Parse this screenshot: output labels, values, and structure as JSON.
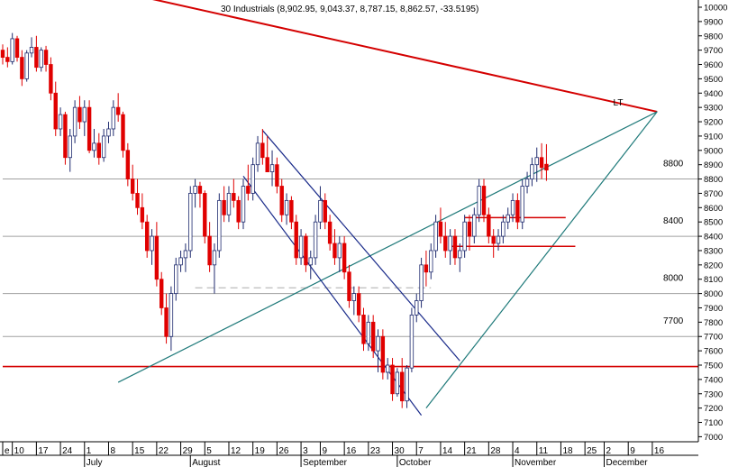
{
  "chart_data": {
    "type": "candlestick",
    "title": "30 Industrials (8,902.95, 9,043.37, 8,787.15, 8,862.57, -33.5195)",
    "ylim": [
      6950,
      10050
    ],
    "y_ticks": [
      7000,
      7100,
      7200,
      7300,
      7400,
      7500,
      7600,
      7700,
      7800,
      7900,
      8000,
      8100,
      8200,
      8300,
      8400,
      8500,
      8600,
      8700,
      8800,
      8900,
      9000,
      9100,
      9200,
      9300,
      9400,
      9500,
      9600,
      9700,
      9800,
      9900,
      10000
    ],
    "x_day_ticks": [
      {
        "label": "e",
        "day": 0
      },
      {
        "label": "10",
        "day": 2
      },
      {
        "label": "17",
        "day": 7
      },
      {
        "label": "24",
        "day": 12
      },
      {
        "label": "1",
        "day": 17
      },
      {
        "label": "8",
        "day": 22
      },
      {
        "label": "15",
        "day": 27
      },
      {
        "label": "22",
        "day": 32
      },
      {
        "label": "29",
        "day": 37
      },
      {
        "label": "5",
        "day": 42
      },
      {
        "label": "12",
        "day": 47
      },
      {
        "label": "19",
        "day": 52
      },
      {
        "label": "26",
        "day": 57
      },
      {
        "label": "3",
        "day": 62
      },
      {
        "label": "9",
        "day": 66
      },
      {
        "label": "16",
        "day": 71
      },
      {
        "label": "23",
        "day": 76
      },
      {
        "label": "30",
        "day": 81
      },
      {
        "label": "7",
        "day": 86
      },
      {
        "label": "14",
        "day": 91
      },
      {
        "label": "21",
        "day": 96
      },
      {
        "label": "28",
        "day": 101
      },
      {
        "label": "4",
        "day": 106
      },
      {
        "label": "11",
        "day": 111
      },
      {
        "label": "18",
        "day": 116
      },
      {
        "label": "25",
        "day": 121
      },
      {
        "label": "2",
        "day": 125
      },
      {
        "label": "9",
        "day": 130
      },
      {
        "label": "16",
        "day": 135
      }
    ],
    "x_months": [
      {
        "label": "July",
        "day": 17
      },
      {
        "label": "August",
        "day": 39
      },
      {
        "label": "September",
        "day": 62
      },
      {
        "label": "October",
        "day": 82
      },
      {
        "label": "November",
        "day": 106
      },
      {
        "label": "December",
        "day": 125
      }
    ],
    "level_labels": [
      {
        "label": "8800",
        "value": 8800
      },
      {
        "label": "8400",
        "value": 8400
      },
      {
        "label": "8000",
        "value": 8000
      },
      {
        "label": "7700",
        "value": 7700
      }
    ],
    "horizontal_lines": [
      {
        "value": 8800,
        "color": "#a0a0a0"
      },
      {
        "value": 8400,
        "color": "#a0a0a0"
      },
      {
        "value": 8000,
        "color": "#a0a0a0"
      },
      {
        "value": 7700,
        "color": "#a0a0a0"
      },
      {
        "value": 7490,
        "color": "#d40000"
      }
    ],
    "dashed_line": {
      "day_from": 40,
      "day_to": 89,
      "value": 8040,
      "color": "#bcbcbc"
    },
    "trend_lines": [
      {
        "from": [
          28,
          10080
        ],
        "to": [
          136,
          9270
        ],
        "color": "#d40000",
        "width": 2
      },
      {
        "from": [
          24,
          7380
        ],
        "to": [
          136,
          9270
        ],
        "color": "#1f7a7a",
        "width": 1.2
      },
      {
        "from": [
          88,
          7200
        ],
        "to": [
          136,
          9270
        ],
        "color": "#1f7a7a",
        "width": 1.2
      },
      {
        "from": [
          54,
          9140
        ],
        "to": [
          95,
          7530
        ],
        "color": "#1a2b8a",
        "width": 1.2
      },
      {
        "from": [
          50,
          8820
        ],
        "to": [
          87,
          7150
        ],
        "color": "#1a2b8a",
        "width": 1.2
      },
      {
        "from": [
          93,
          8330
        ],
        "to": [
          119,
          8330
        ],
        "color": "#d40000",
        "width": 1.5
      },
      {
        "from": [
          96,
          8530
        ],
        "to": [
          117,
          8530
        ],
        "color": "#d40000",
        "width": 1.5
      }
    ],
    "annotation": {
      "label": "LT",
      "day": 128,
      "value": 9340
    },
    "candles": [
      [
        0,
        9700,
        9740,
        9600,
        9650
      ],
      [
        1,
        9650,
        9720,
        9580,
        9620
      ],
      [
        2,
        9620,
        9820,
        9600,
        9780
      ],
      [
        3,
        9780,
        9800,
        9620,
        9650
      ],
      [
        4,
        9650,
        9700,
        9450,
        9500
      ],
      [
        5,
        9500,
        9700,
        9480,
        9680
      ],
      [
        6,
        9680,
        9790,
        9650,
        9720
      ],
      [
        7,
        9720,
        9800,
        9550,
        9580
      ],
      [
        8,
        9580,
        9720,
        9550,
        9700
      ],
      [
        9,
        9700,
        9730,
        9550,
        9600
      ],
      [
        10,
        9600,
        9650,
        9350,
        9400
      ],
      [
        11,
        9400,
        9480,
        9100,
        9150
      ],
      [
        12,
        9150,
        9300,
        9100,
        9250
      ],
      [
        13,
        9250,
        9270,
        8900,
        8950
      ],
      [
        14,
        8950,
        9150,
        8850,
        9100
      ],
      [
        15,
        9100,
        9350,
        9050,
        9300
      ],
      [
        16,
        9300,
        9380,
        9150,
        9200
      ],
      [
        17,
        9200,
        9350,
        9100,
        9300
      ],
      [
        18,
        9300,
        9350,
        8980,
        9000
      ],
      [
        19,
        9000,
        9150,
        8950,
        9050
      ],
      [
        20,
        9050,
        9120,
        8900,
        8950
      ],
      [
        21,
        8950,
        9150,
        8920,
        9100
      ],
      [
        22,
        9100,
        9200,
        9050,
        9150
      ],
      [
        23,
        9150,
        9350,
        9100,
        9300
      ],
      [
        24,
        9300,
        9400,
        9200,
        9250
      ],
      [
        25,
        9250,
        9270,
        8950,
        9000
      ],
      [
        26,
        9000,
        9050,
        8750,
        8800
      ],
      [
        27,
        8800,
        8900,
        8650,
        8700
      ],
      [
        28,
        8700,
        8800,
        8550,
        8600
      ],
      [
        29,
        8600,
        8700,
        8450,
        8500
      ],
      [
        30,
        8500,
        8550,
        8250,
        8300
      ],
      [
        31,
        8300,
        8450,
        8200,
        8400
      ],
      [
        32,
        8400,
        8500,
        8050,
        8100
      ],
      [
        33,
        8100,
        8150,
        7850,
        7900
      ],
      [
        34,
        7900,
        8000,
        7650,
        7700
      ],
      [
        35,
        7700,
        8050,
        7600,
        8000
      ],
      [
        36,
        8000,
        8250,
        7950,
        8200
      ],
      [
        37,
        8200,
        8300,
        8150,
        8250
      ],
      [
        38,
        8250,
        8350,
        8150,
        8300
      ],
      [
        39,
        8300,
        8750,
        8250,
        8700
      ],
      [
        40,
        8700,
        8800,
        8600,
        8750
      ],
      [
        41,
        8750,
        8780,
        8600,
        8700
      ],
      [
        42,
        8700,
        8720,
        8350,
        8400
      ],
      [
        43,
        8400,
        8500,
        8150,
        8200
      ],
      [
        44,
        8200,
        8350,
        8000,
        8300
      ],
      [
        45,
        8300,
        8700,
        8250,
        8650
      ],
      [
        46,
        8650,
        8750,
        8500,
        8550
      ],
      [
        47,
        8550,
        8750,
        8500,
        8700
      ],
      [
        48,
        8700,
        8800,
        8600,
        8650
      ],
      [
        49,
        8650,
        8680,
        8450,
        8500
      ],
      [
        50,
        8500,
        8800,
        8450,
        8750
      ],
      [
        51,
        8750,
        8900,
        8650,
        8700
      ],
      [
        52,
        8700,
        8950,
        8650,
        8900
      ],
      [
        53,
        8900,
        9100,
        8850,
        9050
      ],
      [
        54,
        9050,
        9150,
        8900,
        8950
      ],
      [
        55,
        8950,
        9100,
        8850,
        8850
      ],
      [
        56,
        8850,
        9000,
        8750,
        8900
      ],
      [
        57,
        8900,
        8950,
        8700,
        8750
      ],
      [
        58,
        8750,
        8800,
        8500,
        8550
      ],
      [
        59,
        8550,
        8700,
        8480,
        8650
      ],
      [
        60,
        8650,
        8680,
        8450,
        8500
      ],
      [
        61,
        8500,
        8550,
        8200,
        8250
      ],
      [
        62,
        8250,
        8450,
        8200,
        8400
      ],
      [
        63,
        8400,
        8420,
        8150,
        8200
      ],
      [
        64,
        8200,
        8300,
        8100,
        8250
      ],
      [
        65,
        8250,
        8550,
        8200,
        8500
      ],
      [
        66,
        8500,
        8750,
        8450,
        8650
      ],
      [
        67,
        8650,
        8700,
        8450,
        8500
      ],
      [
        68,
        8500,
        8550,
        8300,
        8350
      ],
      [
        69,
        8350,
        8450,
        8200,
        8250
      ],
      [
        70,
        8250,
        8400,
        8150,
        8350
      ],
      [
        71,
        8350,
        8400,
        8100,
        8150
      ],
      [
        72,
        8150,
        8200,
        7900,
        7950
      ],
      [
        73,
        7950,
        8050,
        7850,
        8000
      ],
      [
        74,
        8000,
        8050,
        7800,
        7850
      ],
      [
        75,
        7850,
        7900,
        7600,
        7650
      ],
      [
        76,
        7650,
        7850,
        7600,
        7800
      ],
      [
        77,
        7800,
        7850,
        7550,
        7600
      ],
      [
        78,
        7600,
        7750,
        7450,
        7700
      ],
      [
        79,
        7700,
        7750,
        7400,
        7450
      ],
      [
        80,
        7450,
        7550,
        7400,
        7500
      ],
      [
        81,
        7500,
        7550,
        7250,
        7300
      ],
      [
        82,
        7300,
        7480,
        7280,
        7450
      ],
      [
        83,
        7450,
        7550,
        7200,
        7250
      ],
      [
        84,
        7250,
        7500,
        7200,
        7480
      ],
      [
        85,
        7480,
        7900,
        7450,
        7850
      ],
      [
        86,
        7850,
        8000,
        7800,
        7950
      ],
      [
        87,
        7950,
        8250,
        7900,
        8200
      ],
      [
        88,
        8200,
        8300,
        8050,
        8150
      ],
      [
        89,
        8150,
        8350,
        8100,
        8300
      ],
      [
        90,
        8300,
        8550,
        8250,
        8500
      ],
      [
        91,
        8500,
        8600,
        8350,
        8400
      ],
      [
        92,
        8400,
        8500,
        8250,
        8300
      ],
      [
        93,
        8300,
        8450,
        8200,
        8400
      ],
      [
        94,
        8400,
        8450,
        8200,
        8250
      ],
      [
        95,
        8250,
        8350,
        8150,
        8300
      ],
      [
        96,
        8300,
        8550,
        8250,
        8500
      ],
      [
        97,
        8500,
        8550,
        8300,
        8400
      ],
      [
        98,
        8400,
        8600,
        8350,
        8550
      ],
      [
        99,
        8550,
        8800,
        8500,
        8750
      ],
      [
        100,
        8750,
        8800,
        8500,
        8550
      ],
      [
        101,
        8550,
        8600,
        8350,
        8400
      ],
      [
        102,
        8400,
        8450,
        8250,
        8350
      ],
      [
        103,
        8350,
        8450,
        8300,
        8400
      ],
      [
        104,
        8400,
        8550,
        8350,
        8500
      ],
      [
        105,
        8500,
        8600,
        8450,
        8550
      ],
      [
        106,
        8550,
        8700,
        8500,
        8650
      ],
      [
        107,
        8650,
        8700,
        8450,
        8500
      ],
      [
        108,
        8500,
        8800,
        8450,
        8750
      ],
      [
        109,
        8750,
        8850,
        8700,
        8800
      ],
      [
        110,
        8800,
        8950,
        8750,
        8900
      ],
      [
        111,
        8900,
        9020,
        8780,
        8950
      ],
      [
        112,
        8950,
        9050,
        8800,
        8880
      ],
      [
        113,
        8902.95,
        9043.37,
        8787.15,
        8862.57
      ]
    ]
  }
}
